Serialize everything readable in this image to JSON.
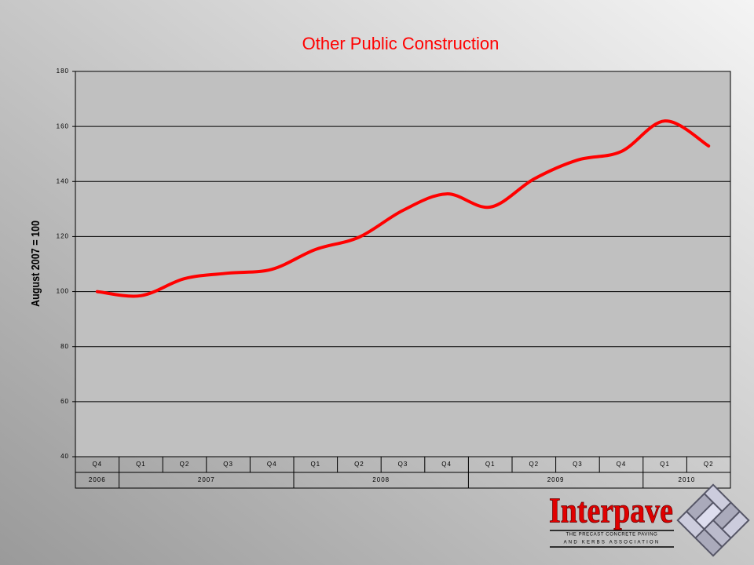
{
  "chart_data": {
    "type": "line",
    "title": "Other Public Construction",
    "y_label": "August 2007 = 100",
    "categories": [
      "Q4",
      "Q1",
      "Q2",
      "Q3",
      "Q4",
      "Q1",
      "Q2",
      "Q3",
      "Q4",
      "Q1",
      "Q2",
      "Q3",
      "Q4",
      "Q1",
      "Q2"
    ],
    "years": [
      "2006",
      "2007",
      "2008",
      "2009",
      "2010"
    ],
    "values": [
      100,
      98.5,
      104.7,
      106.7,
      108.1,
      115.3,
      119.8,
      129.5,
      135.5,
      130.7,
      140.9,
      147.8,
      150.9,
      162,
      152.9
    ],
    "color": "#ff0000",
    "ylim": [
      40,
      180
    ],
    "yticks": [
      40,
      60,
      80,
      100,
      120,
      140,
      160,
      180
    ],
    "grid": true
  },
  "logo": {
    "name": "Interpave",
    "line1": "THE PRECAST CONCRETE PAVING",
    "line2": "AND KERBS ASSOCIATION"
  }
}
